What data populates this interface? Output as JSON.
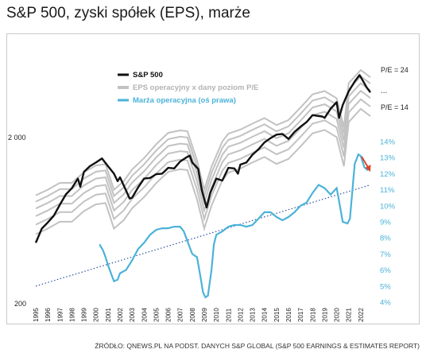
{
  "title": "S&P 500, zyski spółek (EPS), marże",
  "source": "ŹRÓDŁO: QNEWS.PL NA PODST. DANYCH S&P GLOBAL (S&P 500 EARNINGS & ESTIMATES REPORT)",
  "chart_data": {
    "type": "line",
    "x_ticks": [
      "1995",
      "1996",
      "1997",
      "1998",
      "1999",
      "2000",
      "2001",
      "2002",
      "2003",
      "2004",
      "2005",
      "2006",
      "2007",
      "2008",
      "2009",
      "2010",
      "2011",
      "2012",
      "2013",
      "2014",
      "2015",
      "2016",
      "2017",
      "2018",
      "2019",
      "2020",
      "2021",
      "2022"
    ],
    "y_left": {
      "scale": "log",
      "ticks": [
        "2 000",
        "200"
      ]
    },
    "y_right": {
      "ticks": [
        "4%",
        "5%",
        "6%",
        "7%",
        "8%",
        "9%",
        "10%",
        "11%",
        "12%",
        "13%",
        "14%"
      ],
      "ylim": [
        4,
        14
      ]
    },
    "legend": [
      {
        "label": "S&P 500",
        "color": "#111111"
      },
      {
        "label": "EPS operacyjny x dany poziom P/E",
        "color": "#c2c2c2"
      },
      {
        "label": "Marża operacyjna  (oś prawa)",
        "color": "#4bb3d9"
      }
    ],
    "band_labels": [
      "P/E = 24",
      "...",
      "P/E = 14"
    ],
    "sp500": {
      "x": [
        1995.0,
        1995.5,
        1996.0,
        1996.5,
        1997.0,
        1997.5,
        1998.0,
        1998.5,
        1998.7,
        1999.0,
        1999.5,
        2000.0,
        2000.5,
        2000.7,
        2001.0,
        2001.5,
        2001.8,
        2002.0,
        2002.5,
        2002.8,
        2003.0,
        2003.5,
        2004.0,
        2004.5,
        2005.0,
        2005.5,
        2006.0,
        2006.5,
        2007.0,
        2007.5,
        2007.8,
        2008.0,
        2008.5,
        2008.8,
        2009.2,
        2009.5,
        2010.0,
        2010.5,
        2011.0,
        2011.5,
        2011.8,
        2012.0,
        2012.5,
        2013.0,
        2013.5,
        2014.0,
        2014.5,
        2015.0,
        2015.5,
        2016.0,
        2016.5,
        2017.0,
        2017.5,
        2018.0,
        2018.8,
        2019.0,
        2019.5,
        2020.0,
        2020.2,
        2020.5,
        2021.0,
        2021.5,
        2021.9,
        2022.3,
        2022.5,
        2022.8
      ],
      "y": [
        460,
        560,
        610,
        670,
        780,
        900,
        980,
        1120,
        1000,
        1230,
        1330,
        1400,
        1480,
        1420,
        1330,
        1200,
        1080,
        1140,
        950,
        850,
        860,
        990,
        1120,
        1130,
        1190,
        1200,
        1300,
        1290,
        1420,
        1500,
        1540,
        1400,
        1280,
        950,
        750,
        920,
        1120,
        1090,
        1300,
        1290,
        1200,
        1360,
        1400,
        1560,
        1680,
        1850,
        1960,
        2060,
        2080,
        1940,
        2140,
        2300,
        2450,
        2700,
        2650,
        2600,
        2950,
        3230,
        2600,
        3100,
        3750,
        4300,
        4700,
        4200,
        3950,
        3700
      ]
    },
    "eps_x": [
      1995,
      1996,
      1997,
      1998,
      1999,
      2000,
      2000.8,
      2001.5,
      2002.3,
      2003,
      2004,
      2005,
      2006,
      2007,
      2007.6,
      2008.4,
      2009.0,
      2009.6,
      2010.5,
      2011,
      2012,
      2013,
      2014,
      2015,
      2016,
      2017,
      2018,
      2019,
      2020.0,
      2020.6,
      2021,
      2022,
      2022.8
    ],
    "eps": [
      37,
      40,
      44,
      44,
      51,
      56,
      57,
      40,
      45,
      53,
      62,
      75,
      88,
      91,
      90,
      60,
      40,
      55,
      78,
      87,
      92,
      100,
      108,
      98,
      105,
      125,
      150,
      157,
      142,
      95,
      175,
      210,
      190
    ],
    "pe_levels": [
      14,
      16,
      18,
      20,
      22,
      24
    ],
    "margin": {
      "x": [
        2000.3,
        2000.6,
        2000.8,
        2001.0,
        2001.3,
        2001.5,
        2001.8,
        2002.0,
        2002.5,
        2003.0,
        2003.5,
        2004.0,
        2004.5,
        2005.0,
        2005.5,
        2006.0,
        2006.5,
        2007.0,
        2007.3,
        2007.7,
        2008.0,
        2008.4,
        2008.7,
        2008.9,
        2009.1,
        2009.3,
        2009.6,
        2009.8,
        2010.0,
        2010.5,
        2011.0,
        2011.5,
        2012.0,
        2012.5,
        2013.0,
        2013.5,
        2014.0,
        2014.5,
        2015.0,
        2015.5,
        2016.0,
        2016.5,
        2017.0,
        2017.5,
        2018.0,
        2018.5,
        2019.0,
        2019.5,
        2020.0,
        2020.2,
        2020.5,
        2020.9,
        2021.1,
        2021.5,
        2021.8,
        2022.0,
        2022.3,
        2022.6
      ],
      "y": [
        7.6,
        7.2,
        6.8,
        6.3,
        5.7,
        5.3,
        5.4,
        5.8,
        6.0,
        6.6,
        7.3,
        7.7,
        8.2,
        8.5,
        8.6,
        8.6,
        8.7,
        8.7,
        8.4,
        7.6,
        7.0,
        6.8,
        5.5,
        4.6,
        4.3,
        4.4,
        6.0,
        7.6,
        8.2,
        8.4,
        8.7,
        8.8,
        8.8,
        8.7,
        8.8,
        9.2,
        9.6,
        9.6,
        9.3,
        9.1,
        9.3,
        9.6,
        10.0,
        10.2,
        10.8,
        11.3,
        11.1,
        10.7,
        11.1,
        10.3,
        9.0,
        8.9,
        9.2,
        12.6,
        13.2,
        13.1,
        12.4,
        12.2
      ]
    },
    "trend": {
      "x": [
        1995,
        2022.8
      ],
      "y": [
        5.0,
        11.3
      ]
    }
  }
}
